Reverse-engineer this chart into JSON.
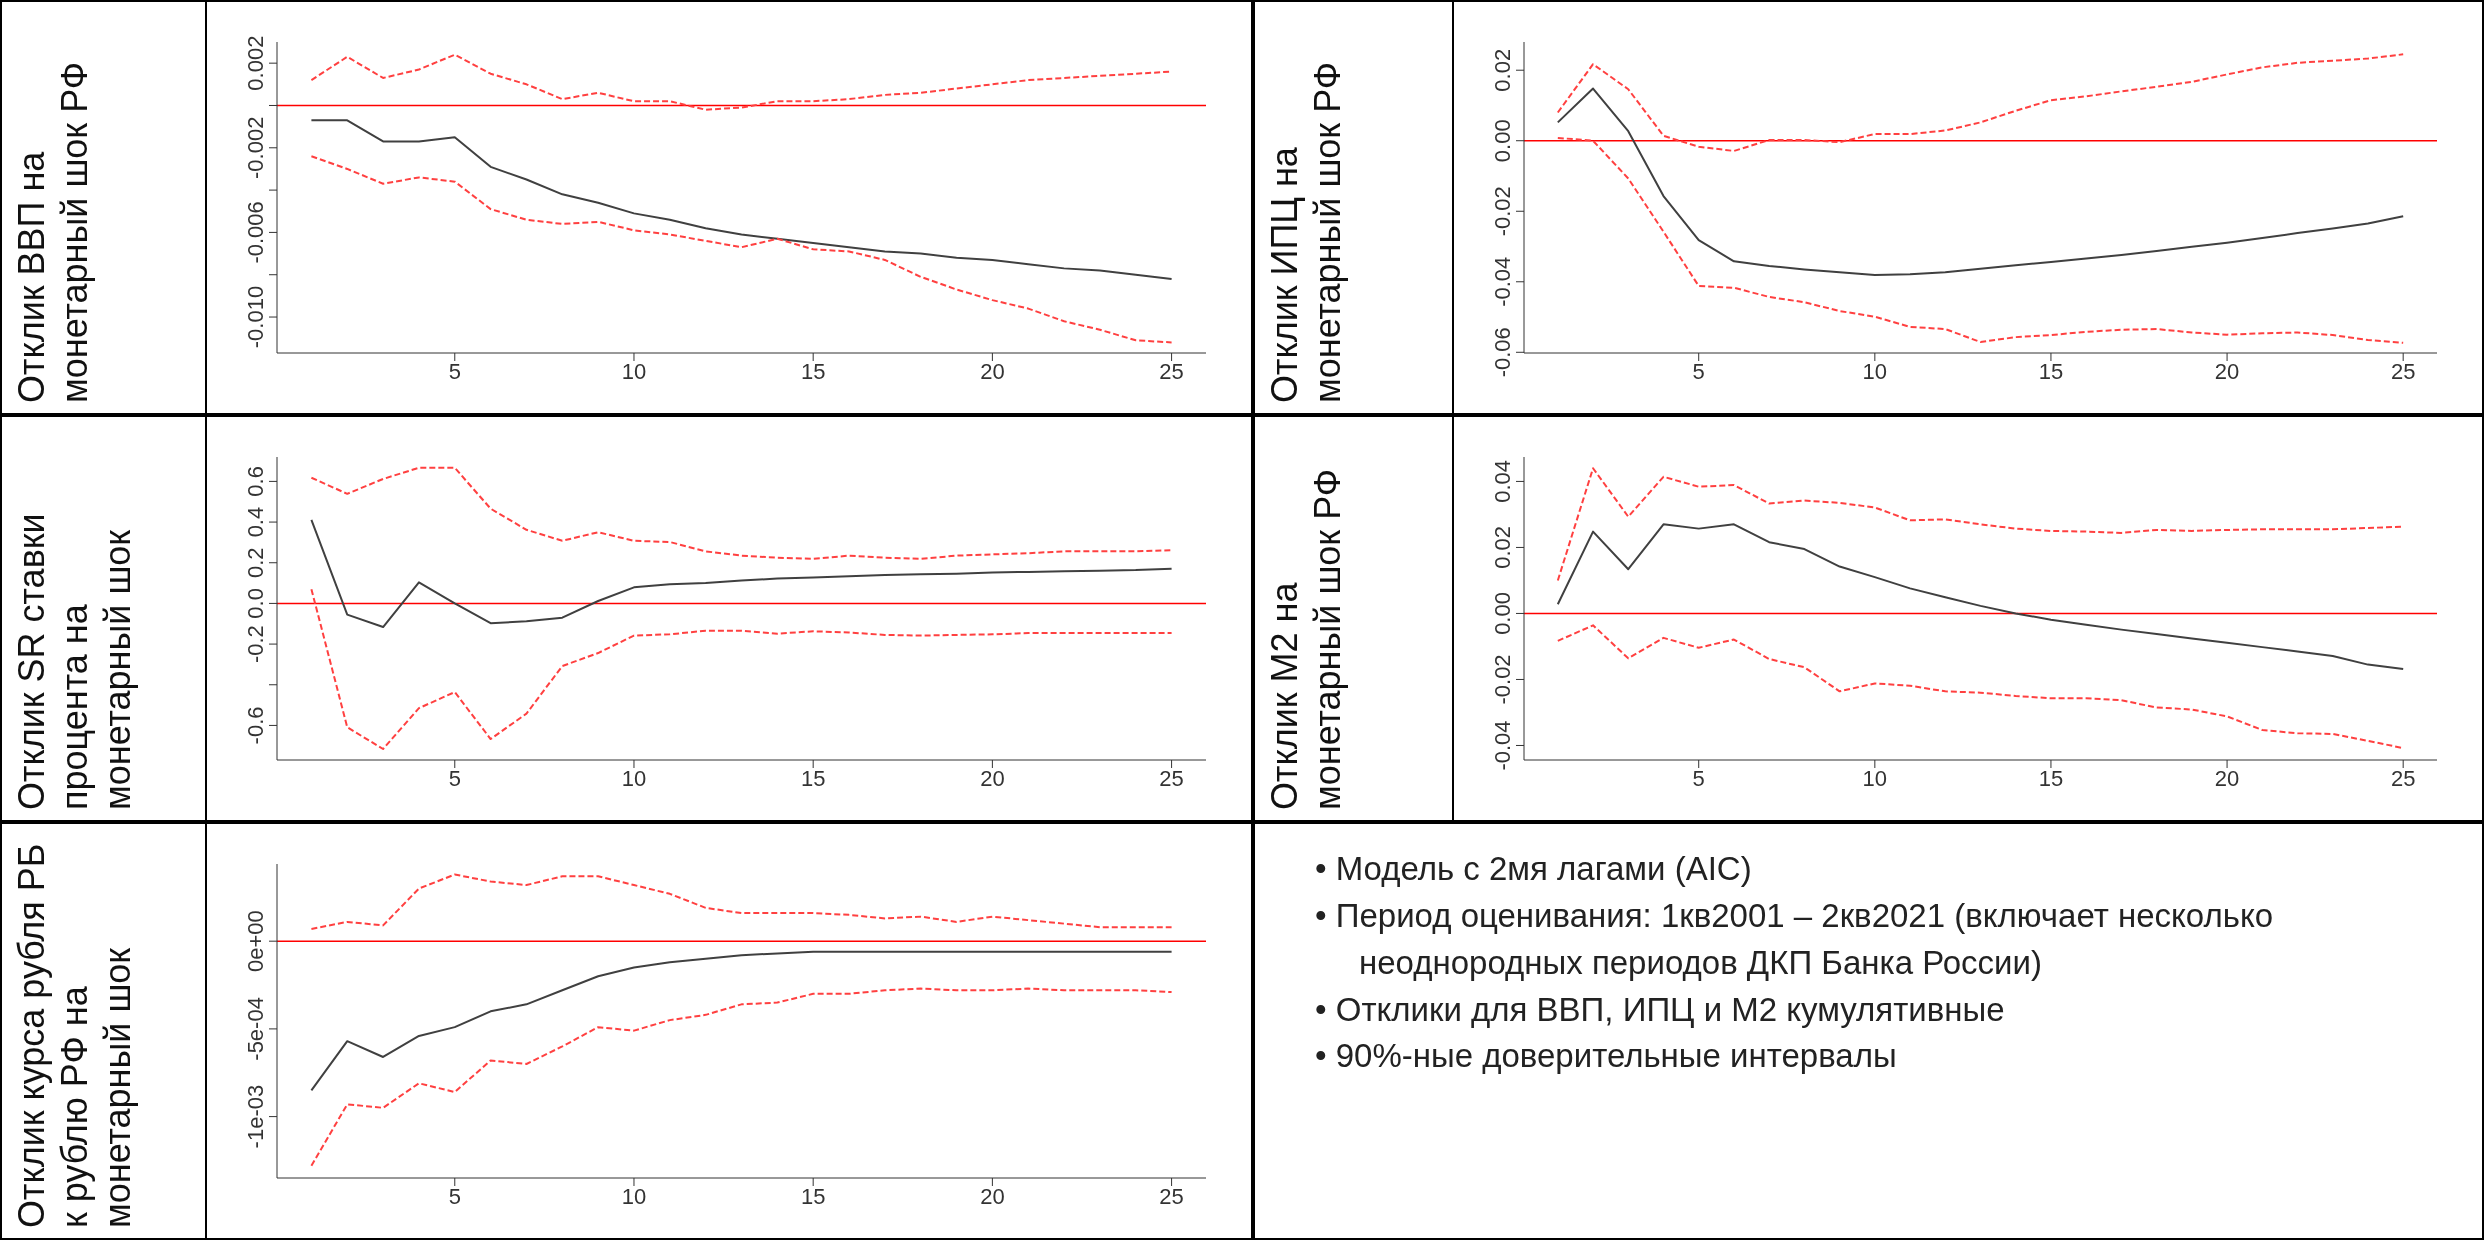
{
  "chart_data": [
    {
      "type": "line",
      "ylabel": "Отклик ВВП на монетарный шок РФ",
      "x": [
        1,
        2,
        3,
        4,
        5,
        6,
        7,
        8,
        9,
        10,
        11,
        12,
        13,
        14,
        15,
        16,
        17,
        18,
        19,
        20,
        21,
        22,
        23,
        24,
        25
      ],
      "xlim": [
        0.04,
        25.96
      ],
      "xticks": [
        5,
        10,
        15,
        20,
        25
      ],
      "ylim": [
        -0.0117,
        0.003
      ],
      "yticks": [
        {
          "value": 0.002,
          "label": "0.002"
        },
        {
          "value": 0,
          "label": null
        },
        {
          "value": -0.002,
          "label": "-0.002"
        },
        {
          "value": -0.004,
          "label": null
        },
        {
          "value": -0.006,
          "label": "-0.006"
        },
        {
          "value": -0.008,
          "label": null
        },
        {
          "value": -0.01,
          "label": "-0.010"
        }
      ],
      "series": [
        {
          "color": "#404040",
          "line_style": "solid",
          "values": [
            -0.0007,
            -0.0007,
            -0.0017,
            -0.0017,
            -0.0015,
            -0.0029,
            -0.0035,
            -0.0042,
            -0.0046,
            -0.0051,
            -0.0054,
            -0.0058,
            -0.0061,
            -0.0063,
            -0.0065,
            -0.0067,
            -0.0069,
            -0.007,
            -0.0072,
            -0.0073,
            -0.0075,
            -0.0077,
            -0.0078,
            -0.008,
            -0.0082
          ]
        },
        {
          "color": "#ff4040",
          "line_style": "dashed",
          "values": [
            0.0012,
            0.0023,
            0.0013,
            0.0017,
            0.0024,
            0.0015,
            0.001,
            0.0003,
            0.0006,
            0.0002,
            0.0002,
            -0.0002,
            -0.0001,
            0.0002,
            0.0002,
            0.0003,
            0.0005,
            0.0006,
            0.0008,
            0.001,
            0.0012,
            0.0013,
            0.0014,
            0.0015,
            0.0016
          ]
        },
        {
          "color": "#ff4040",
          "line_style": "dashed",
          "values": [
            -0.0024,
            -0.003,
            -0.0037,
            -0.0034,
            -0.0036,
            -0.0049,
            -0.0054,
            -0.0056,
            -0.0055,
            -0.0059,
            -0.0061,
            -0.0064,
            -0.0067,
            -0.0063,
            -0.0068,
            -0.0069,
            -0.0073,
            -0.0081,
            -0.0087,
            -0.0092,
            -0.0096,
            -0.0102,
            -0.0106,
            -0.0111,
            -0.0112
          ]
        }
      ],
      "ref_lines": [
        {
          "axis": "y",
          "value": 0,
          "color": "#ff0000"
        }
      ]
    },
    {
      "type": "line",
      "ylabel": "Отклик ИПЦ на монетарный шок РФ",
      "x": [
        1,
        2,
        3,
        4,
        5,
        6,
        7,
        8,
        9,
        10,
        11,
        12,
        13,
        14,
        15,
        16,
        17,
        18,
        19,
        20,
        21,
        22,
        23,
        24,
        25
      ],
      "xlim": [
        0.04,
        25.96
      ],
      "xticks": [
        5,
        10,
        15,
        20,
        25
      ],
      "ylim": [
        -0.0602,
        0.028
      ],
      "yticks": [
        {
          "value": -0.06,
          "label": "-0.06"
        },
        {
          "value": -0.04,
          "label": "-0.04"
        },
        {
          "value": -0.02,
          "label": "-0.02"
        },
        {
          "value": 0,
          "label": "0.00"
        },
        {
          "value": 0.02,
          "label": "0.02"
        }
      ],
      "series": [
        {
          "color": "#404040",
          "line_style": "solid",
          "values": [
            0.0052,
            0.0148,
            0.0027,
            -0.0157,
            -0.0282,
            -0.0342,
            -0.0355,
            -0.0365,
            -0.0373,
            -0.0381,
            -0.0379,
            -0.0373,
            -0.0363,
            -0.0353,
            -0.0344,
            -0.0334,
            -0.0324,
            -0.0313,
            -0.0301,
            -0.0289,
            -0.0276,
            -0.0262,
            -0.0249,
            -0.0235,
            -0.0214
          ]
        },
        {
          "color": "#ff4040",
          "line_style": "dashed",
          "values": [
            0.008,
            0.0217,
            0.0146,
            0.0014,
            -0.0017,
            -0.0029,
            0.0002,
            0.0002,
            -0.0004,
            0.0019,
            0.0019,
            0.0029,
            0.0052,
            0.0085,
            0.0115,
            0.0126,
            0.014,
            0.0153,
            0.0167,
            0.0188,
            0.0208,
            0.0221,
            0.0227,
            0.0233,
            0.0245
          ]
        },
        {
          "color": "#ff4040",
          "line_style": "dashed",
          "values": [
            0.0008,
            0.0,
            -0.0107,
            -0.0258,
            -0.0412,
            -0.0417,
            -0.0443,
            -0.0458,
            -0.0483,
            -0.0499,
            -0.0528,
            -0.0534,
            -0.0571,
            -0.0557,
            -0.0551,
            -0.0542,
            -0.0536,
            -0.0534,
            -0.0544,
            -0.055,
            -0.0546,
            -0.0544,
            -0.0551,
            -0.0565,
            -0.0573
          ]
        }
      ],
      "ref_lines": [
        {
          "axis": "y",
          "value": 0,
          "color": "#ff0000"
        }
      ]
    },
    {
      "type": "line",
      "ylabel": "Отклик SR ставки процента на монетарный шок",
      "x": [
        1,
        2,
        3,
        4,
        5,
        6,
        7,
        8,
        9,
        10,
        11,
        12,
        13,
        14,
        15,
        16,
        17,
        18,
        19,
        20,
        21,
        22,
        23,
        24,
        25
      ],
      "xlim": [
        0.04,
        25.96
      ],
      "xticks": [
        5,
        10,
        15,
        20,
        25
      ],
      "ylim": [
        -0.77,
        0.72
      ],
      "yticks": [
        {
          "value": -0.6,
          "label": "-0.6"
        },
        {
          "value": -0.4,
          "label": null
        },
        {
          "value": -0.2,
          "label": "-0.2"
        },
        {
          "value": 0,
          "label": "0.0"
        },
        {
          "value": 0.2,
          "label": "0.2"
        },
        {
          "value": 0.4,
          "label": "0.4"
        },
        {
          "value": 0.6,
          "label": "0.6"
        }
      ],
      "series": [
        {
          "color": "#404040",
          "line_style": "solid",
          "values": [
            0.411,
            -0.055,
            -0.116,
            0.104,
            0.0,
            -0.097,
            -0.088,
            -0.07,
            0.012,
            0.079,
            0.094,
            0.1,
            0.113,
            0.122,
            0.128,
            0.134,
            0.14,
            0.143,
            0.146,
            0.152,
            0.155,
            0.158,
            0.161,
            0.164,
            0.171
          ]
        },
        {
          "color": "#ff4040",
          "line_style": "dashed",
          "values": [
            0.618,
            0.539,
            0.612,
            0.667,
            0.667,
            0.466,
            0.362,
            0.308,
            0.35,
            0.308,
            0.302,
            0.256,
            0.235,
            0.225,
            0.219,
            0.235,
            0.225,
            0.219,
            0.235,
            0.241,
            0.247,
            0.256,
            0.256,
            0.256,
            0.262
          ]
        },
        {
          "color": "#ff4040",
          "line_style": "dashed",
          "values": [
            0.07,
            -0.609,
            -0.716,
            -0.515,
            -0.436,
            -0.667,
            -0.542,
            -0.308,
            -0.244,
            -0.158,
            -0.152,
            -0.134,
            -0.134,
            -0.149,
            -0.137,
            -0.143,
            -0.155,
            -0.158,
            -0.155,
            -0.152,
            -0.146,
            -0.146,
            -0.146,
            -0.146,
            -0.146
          ]
        }
      ],
      "ref_lines": [
        {
          "axis": "y",
          "value": 0,
          "color": "#ff0000"
        }
      ]
    },
    {
      "type": "line",
      "ylabel": "Отклик M2 на монетарный шок РФ",
      "x": [
        1,
        2,
        3,
        4,
        5,
        6,
        7,
        8,
        9,
        10,
        11,
        12,
        13,
        14,
        15,
        16,
        17,
        18,
        19,
        20,
        21,
        22,
        23,
        24,
        25
      ],
      "xlim": [
        0.04,
        25.96
      ],
      "xticks": [
        5,
        10,
        15,
        20,
        25
      ],
      "ylim": [
        -0.0444,
        0.0474
      ],
      "yticks": [
        {
          "value": -0.04,
          "label": "-0.04"
        },
        {
          "value": -0.02,
          "label": "-0.02"
        },
        {
          "value": 0,
          "label": "0.00"
        },
        {
          "value": 0.02,
          "label": "0.02"
        },
        {
          "value": 0.04,
          "label": "0.04"
        }
      ],
      "series": [
        {
          "color": "#404040",
          "line_style": "solid",
          "values": [
            0.0028,
            0.0248,
            0.0134,
            0.027,
            0.0257,
            0.027,
            0.0216,
            0.0195,
            0.0142,
            0.011,
            0.0076,
            0.0049,
            0.0023,
            0.0,
            -0.0019,
            -0.0034,
            -0.0049,
            -0.0062,
            -0.0076,
            -0.0089,
            -0.0102,
            -0.0115,
            -0.0129,
            -0.0155,
            -0.0168
          ]
        },
        {
          "color": "#ff4040",
          "line_style": "dashed",
          "values": [
            0.01,
            0.044,
            0.0293,
            0.0414,
            0.0384,
            0.0389,
            0.0333,
            0.0342,
            0.0335,
            0.0321,
            0.0282,
            0.0285,
            0.027,
            0.0257,
            0.025,
            0.0248,
            0.0244,
            0.0253,
            0.025,
            0.0253,
            0.0255,
            0.0255,
            0.0255,
            0.0259,
            0.0263
          ]
        },
        {
          "color": "#ff4040",
          "line_style": "dashed",
          "values": [
            -0.0083,
            -0.0036,
            -0.0136,
            -0.0074,
            -0.0104,
            -0.0079,
            -0.0138,
            -0.0163,
            -0.0236,
            -0.0212,
            -0.0219,
            -0.0236,
            -0.024,
            -0.025,
            -0.0257,
            -0.0257,
            -0.0263,
            -0.0285,
            -0.0291,
            -0.0312,
            -0.0353,
            -0.0363,
            -0.0365,
            -0.0386,
            -0.0408
          ]
        }
      ],
      "ref_lines": [
        {
          "axis": "y",
          "value": 0,
          "color": "#ff0000"
        }
      ]
    },
    {
      "type": "line",
      "ylabel": "Отклик курса рубля РБ к рублю РФ на монетарный шок",
      "x": [
        1,
        2,
        3,
        4,
        5,
        6,
        7,
        8,
        9,
        10,
        11,
        12,
        13,
        14,
        15,
        16,
        17,
        18,
        19,
        20,
        21,
        22,
        23,
        24,
        25
      ],
      "xlim": [
        0.04,
        25.96
      ],
      "xticks": [
        5,
        10,
        15,
        20,
        25
      ],
      "ylim": [
        -0.00135,
        0.00044
      ],
      "yticks": [
        {
          "value": -0.001,
          "label": "-1e-03"
        },
        {
          "value": -0.0005,
          "label": "-5e-04"
        },
        {
          "value": 0,
          "label": "0e+00"
        }
      ],
      "series": [
        {
          "color": "#404040",
          "line_style": "solid",
          "values": [
            -0.00085,
            -0.00057,
            -0.00066,
            -0.00054,
            -0.00049,
            -0.0004,
            -0.00036,
            -0.00028,
            -0.0002,
            -0.00015,
            -0.00012,
            -0.0001,
            -8e-05,
            -7e-05,
            -6e-05,
            -6e-05,
            -6e-05,
            -6e-05,
            -6e-05,
            -6e-05,
            -6e-05,
            -6e-05,
            -6e-05,
            -6e-05,
            -6e-05
          ]
        },
        {
          "color": "#ff4040",
          "line_style": "dashed",
          "values": [
            7e-05,
            0.00011,
            9e-05,
            0.0003,
            0.00038,
            0.00034,
            0.00032,
            0.00037,
            0.00037,
            0.00032,
            0.00027,
            0.00019,
            0.00016,
            0.00016,
            0.00016,
            0.00015,
            0.00013,
            0.00014,
            0.00011,
            0.00014,
            0.00012,
            0.0001,
            8e-05,
            8e-05,
            8e-05
          ]
        },
        {
          "color": "#ff4040",
          "line_style": "dashed",
          "values": [
            -0.00128,
            -0.00093,
            -0.00095,
            -0.00081,
            -0.00086,
            -0.00068,
            -0.0007,
            -0.0006,
            -0.00049,
            -0.00051,
            -0.00045,
            -0.00042,
            -0.00036,
            -0.00035,
            -0.0003,
            -0.0003,
            -0.00028,
            -0.00027,
            -0.00028,
            -0.00028,
            -0.00027,
            -0.00028,
            -0.00028,
            -0.00028,
            -0.00029
          ]
        }
      ],
      "ref_lines": [
        {
          "axis": "y",
          "value": 0,
          "color": "#ff0000"
        }
      ]
    },
    {
      "type": "other",
      "annotations": [
        "• Модель с 2мя лагами (AIC)",
        "• Период оценивания: 1кв2001 – 2кв2021 (включает несколько неоднородных периодов ДКП Банка России)",
        "• Отклики для ВВП, ИПЦ и М2 кумулятивные",
        "• 90%-ные доверительные интервалы"
      ]
    }
  ]
}
